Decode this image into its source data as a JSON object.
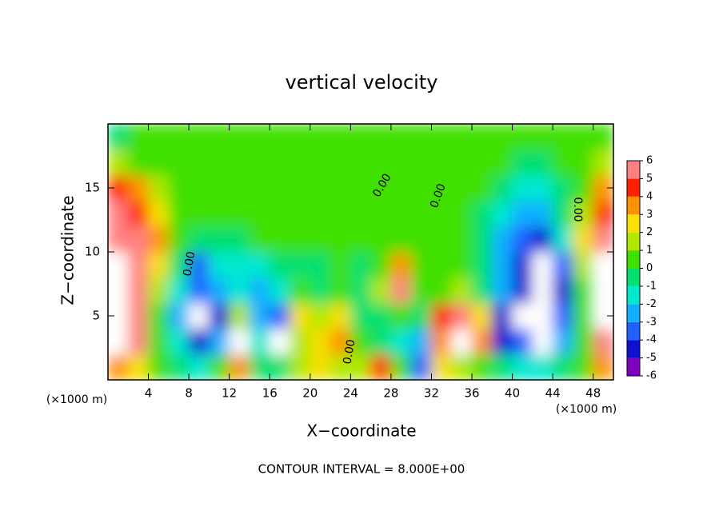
{
  "chart_data": {
    "type": "heatmap",
    "title": "vertical velocity",
    "x_label": "X−coordinate",
    "y_label": "Z−coordinate",
    "y_unit_label": "(×1000 m)",
    "x_unit_label": "(×1000 m)",
    "footer": "CONTOUR INTERVAL = 8.000E+00",
    "x": [
      1,
      3,
      5,
      7,
      9,
      11,
      13,
      15,
      17,
      19,
      21,
      23,
      25,
      27,
      29,
      31,
      33,
      35,
      37,
      39,
      41,
      43,
      45,
      47,
      49
    ],
    "y": [
      1,
      3,
      5,
      7,
      9,
      11,
      13,
      15,
      17,
      19
    ],
    "values": [
      [
        3,
        2,
        0,
        -1,
        -2,
        0,
        3,
        -1,
        -1,
        1,
        2,
        1.5,
        1,
        4,
        0,
        -4,
        2,
        1,
        0.5,
        -1,
        -2,
        -2,
        -1,
        0,
        3
      ],
      [
        10,
        5,
        0,
        -2,
        -5,
        -3,
        8,
        -2,
        -7,
        1,
        2,
        3,
        0,
        -1,
        -2,
        -3,
        3,
        8,
        3,
        -5,
        -4,
        -10,
        -3,
        0,
        5
      ],
      [
        10,
        5,
        0.5,
        -3,
        -8,
        -5,
        1,
        -3,
        -4,
        2,
        1,
        2,
        -1,
        -1,
        0,
        -1,
        4,
        6,
        2,
        -5,
        -8,
        -10,
        -4,
        0,
        8
      ],
      [
        10,
        5,
        1,
        -2,
        -4,
        -3,
        -2,
        -2.5,
        -2,
        0,
        -1,
        0.5,
        -1,
        1,
        6,
        0,
        0,
        1,
        -1,
        -3,
        -5,
        -10,
        -5,
        0,
        10
      ],
      [
        8,
        5,
        2,
        -1,
        -3.5,
        -2,
        -1.5,
        -1.5,
        -1,
        -1,
        -0.5,
        0,
        -0.5,
        0,
        3,
        0,
        0,
        0.5,
        -1,
        -3,
        -5,
        -8,
        -4,
        1,
        8
      ],
      [
        6,
        5,
        3,
        0.5,
        -1,
        -0.5,
        -0.5,
        0,
        0,
        0,
        0.5,
        0.5,
        0.5,
        0.5,
        0.5,
        0.5,
        0.5,
        0,
        -1,
        -3,
        -4,
        -4.5,
        -2,
        2,
        6
      ],
      [
        5,
        4.5,
        2,
        0.5,
        0,
        0,
        0.5,
        0.5,
        0.5,
        0.5,
        0.5,
        0.5,
        0.5,
        0.5,
        0.5,
        0.5,
        0.5,
        0,
        -0.5,
        -1.5,
        -2.5,
        -2.5,
        -1,
        1,
        4
      ],
      [
        4,
        3,
        1.5,
        0.5,
        0.5,
        0.5,
        0.5,
        0.5,
        0.5,
        0.5,
        0.5,
        0.5,
        0.5,
        0.5,
        0.5,
        0.5,
        0.5,
        0,
        0,
        -1,
        -1.5,
        -1.5,
        -0.5,
        0.5,
        3
      ],
      [
        1.5,
        0.5,
        0.5,
        0.5,
        0.5,
        0.5,
        0.5,
        0.5,
        0.5,
        0.5,
        0.5,
        0.5,
        0.5,
        0.5,
        0.5,
        0.5,
        0.5,
        0.5,
        0,
        0,
        -0.5,
        -0.5,
        0,
        0,
        1
      ],
      [
        -1,
        0,
        0.5,
        0.5,
        0.5,
        0.5,
        0.5,
        0.5,
        0.5,
        0.5,
        0.5,
        0.5,
        0.5,
        0.5,
        0.5,
        0.5,
        0.5,
        0.5,
        0.5,
        0.5,
        0.5,
        0.5,
        0.5,
        0,
        0.5
      ]
    ],
    "xlim": [
      0,
      50
    ],
    "ylim": [
      0,
      20
    ],
    "xticks": [
      4,
      8,
      12,
      16,
      20,
      24,
      28,
      32,
      36,
      40,
      44,
      48
    ],
    "yticks": [
      5,
      10,
      15
    ],
    "colorbar": {
      "ticks": [
        -6,
        -5,
        -4,
        -3,
        -2,
        -1,
        0,
        1,
        2,
        3,
        4,
        5,
        6
      ],
      "colors": [
        "#8000c0",
        "#1010d0",
        "#2060ff",
        "#10b0ff",
        "#00e8d0",
        "#00e070",
        "#40e000",
        "#b0e800",
        "#f8e000",
        "#ff9000",
        "#ff2000",
        "#ff8080"
      ],
      "over_color": "#ffffff"
    },
    "contour_labels": [
      "0.00",
      "0.00",
      "0.00",
      "0.00",
      "0.00"
    ]
  }
}
